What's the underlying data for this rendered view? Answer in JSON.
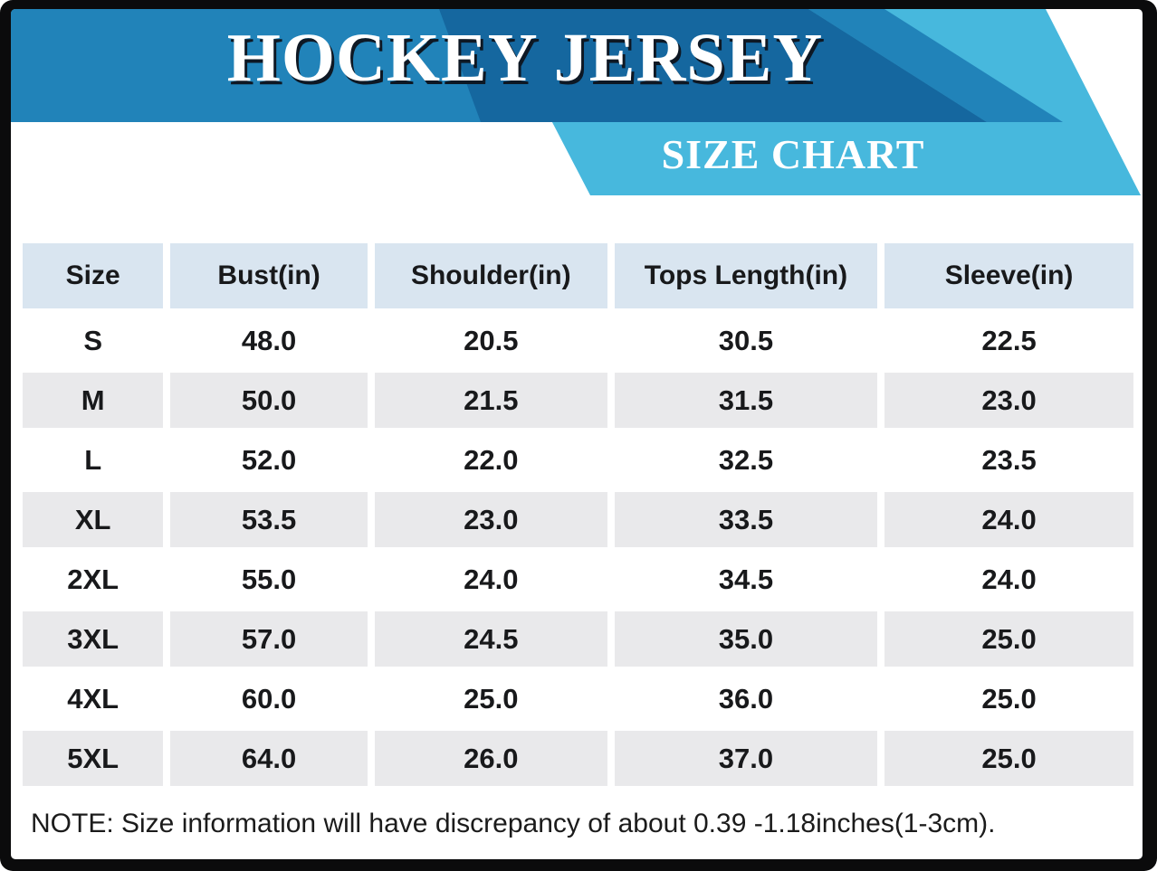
{
  "header": {
    "title": "HOCKEY JERSEY",
    "subtitle": "SIZE CHART"
  },
  "note": "NOTE: Size information will have discrepancy of about 0.39 -1.18inches(1-3cm).",
  "colors": {
    "frame_black": "#0b0b0c",
    "banner_bright_blue": "#2183b9",
    "banner_dark_blue": "#15679f",
    "accent_light_blue": "#47b8dd",
    "table_header_bg": "#d9e5f0",
    "row_alt_bg": "#e9e9eb",
    "text_dark": "#18191b",
    "title_text": "#ffffff"
  },
  "chart_data": {
    "type": "table",
    "title": "HOCKEY JERSEY",
    "subtitle": "SIZE CHART",
    "columns": [
      "Size",
      "Bust(in)",
      "Shoulder(in)",
      "Tops Length(in)",
      "Sleeve(in)"
    ],
    "rows": [
      [
        "S",
        "48.0",
        "20.5",
        "30.5",
        "22.5"
      ],
      [
        "M",
        "50.0",
        "21.5",
        "31.5",
        "23.0"
      ],
      [
        "L",
        "52.0",
        "22.0",
        "32.5",
        "23.5"
      ],
      [
        "XL",
        "53.5",
        "23.0",
        "33.5",
        "24.0"
      ],
      [
        "2XL",
        "55.0",
        "24.0",
        "34.5",
        "24.0"
      ],
      [
        "3XL",
        "57.0",
        "24.5",
        "35.0",
        "25.0"
      ],
      [
        "4XL",
        "60.0",
        "25.0",
        "36.0",
        "25.0"
      ],
      [
        "5XL",
        "64.0",
        "26.0",
        "37.0",
        "25.0"
      ]
    ]
  }
}
